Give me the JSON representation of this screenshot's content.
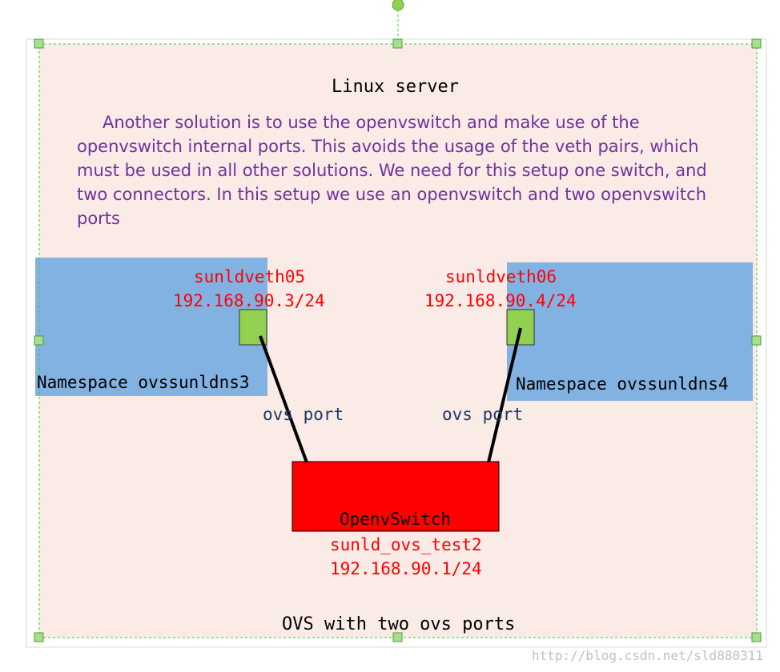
{
  "server": {
    "title": "Linux server",
    "description": "Another solution is to use the openvswitch and make use of the openvswitch internal ports. This avoids the usage of the veth pairs, which must be used in all other solutions. We need for this setup one switch, and two connectors. In this setup we use an openvswitch and two openvswitch ports",
    "footer": "OVS with two ovs ports"
  },
  "namespaces": [
    {
      "label": "Namespace ovssunldns3",
      "port_name": "sunldveth05",
      "port_ip": "192.168.90.3/24"
    },
    {
      "label": "Namespace ovssunldns4",
      "port_name": "sunldveth06",
      "port_ip": "192.168.90.4/24"
    }
  ],
  "links": [
    {
      "label": "ovs port"
    },
    {
      "label": "ovs port"
    }
  ],
  "switch": {
    "label": "OpenvSwitch",
    "bridge_name": "sunld_ovs_test2",
    "bridge_ip": "192.168.90.1/24"
  },
  "watermark": "http://blog.csdn.net/sld880311",
  "colors": {
    "server_fill": "#fbebe6",
    "namespace_fill": "#82b2e2",
    "port_fill": "#92d050",
    "switch_fill": "#ff0000",
    "selection": "#00cc00",
    "ip_text": "#ff0000",
    "desc_text": "#7030a0",
    "port_label_text": "#1f3864"
  }
}
